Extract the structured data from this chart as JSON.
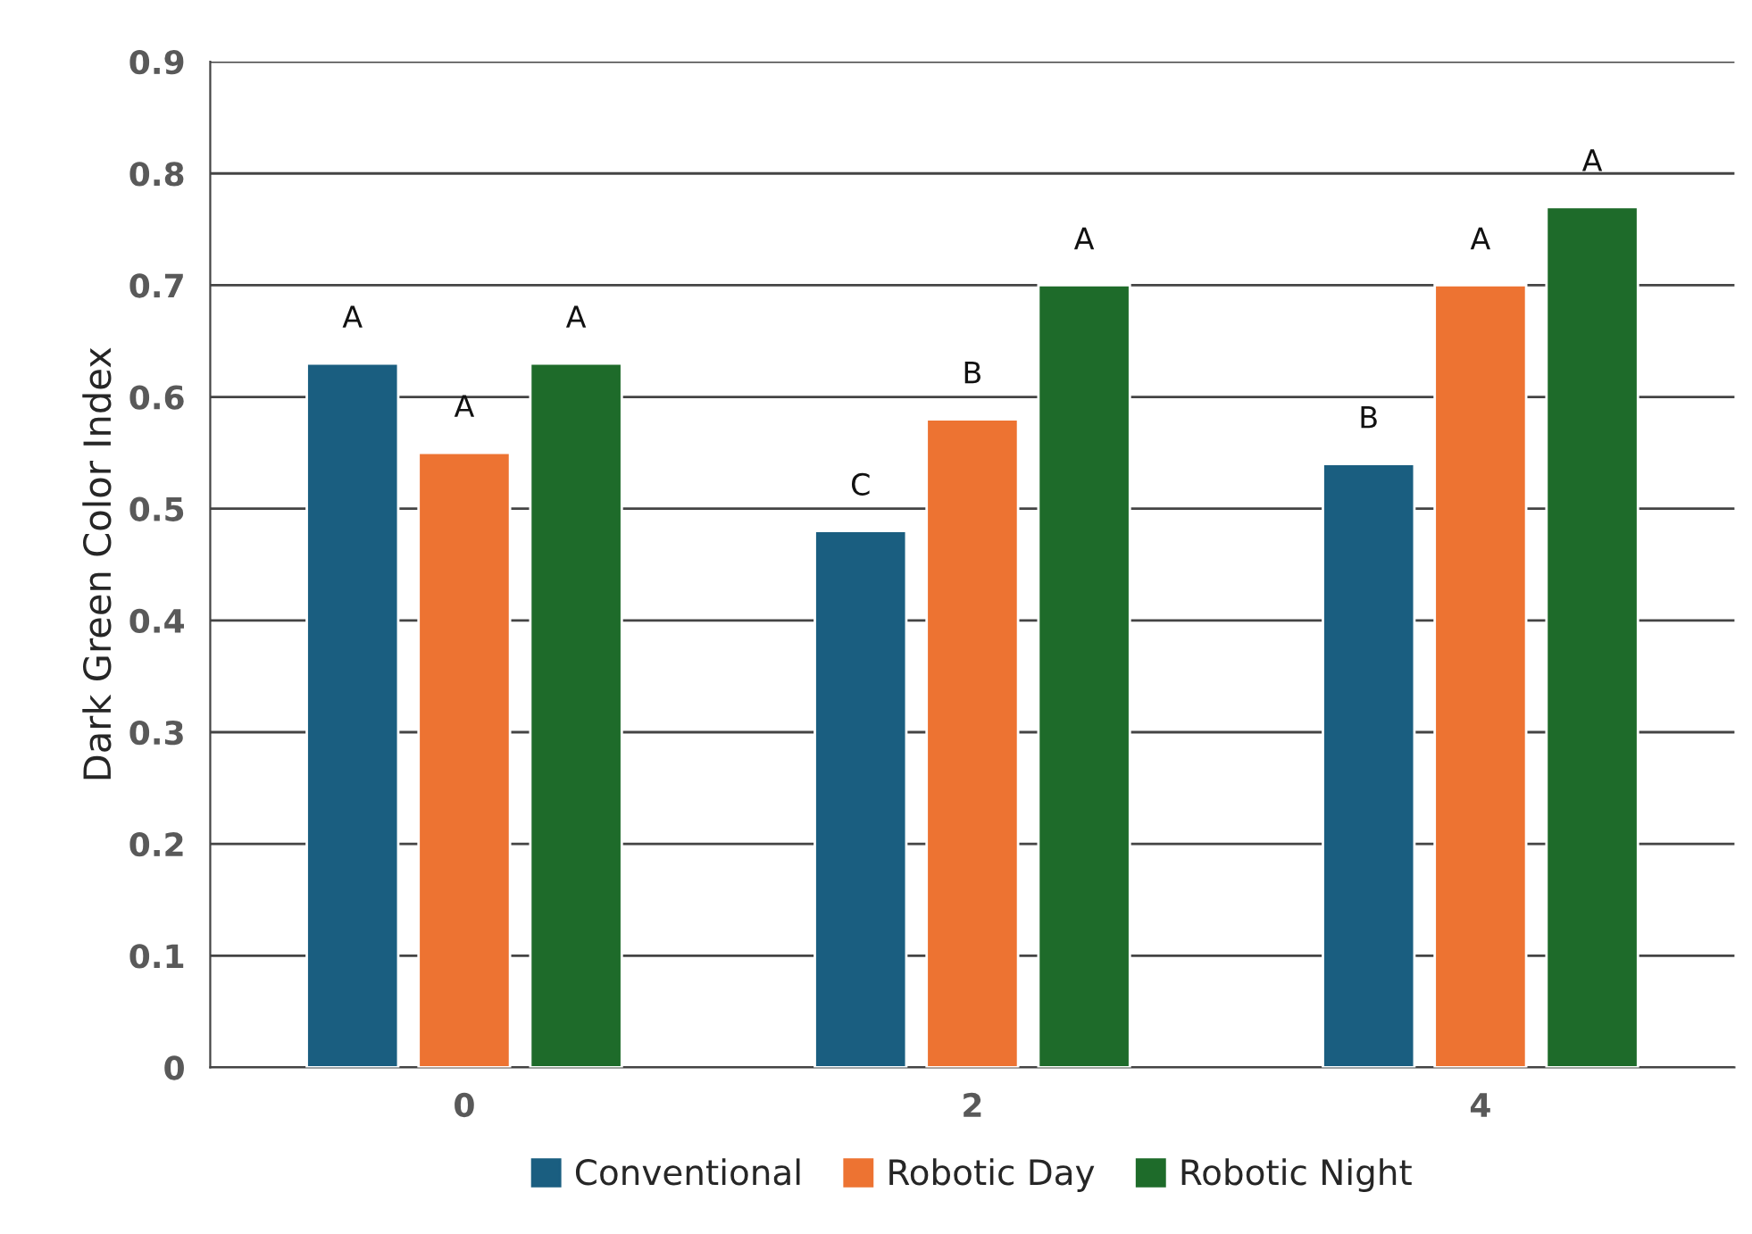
{
  "chart_data": {
    "type": "bar",
    "ylabel": "Dark Green Color Index",
    "categories": [
      "0",
      "2",
      "4"
    ],
    "series": [
      {
        "name": "Conventional",
        "color": "#1a5e80",
        "values": [
          0.63,
          0.48,
          0.54
        ],
        "value_labels": [
          "A",
          "C",
          "B"
        ]
      },
      {
        "name": "Robotic Day",
        "color": "#ed7332",
        "values": [
          0.55,
          0.58,
          0.7
        ],
        "value_labels": [
          "A",
          "B",
          "A"
        ]
      },
      {
        "name": "Robotic Night",
        "color": "#1e6b2a",
        "values": [
          0.63,
          0.7,
          0.77
        ],
        "value_labels": [
          "A",
          "A",
          "A"
        ]
      }
    ],
    "ylim": [
      0,
      0.9
    ],
    "yticks": [
      {
        "value": 0,
        "label": "0"
      },
      0.1,
      0.2,
      0.3,
      0.4,
      0.5,
      0.6,
      0.7,
      0.8,
      0.9
    ],
    "grid": "y",
    "legend": "bottom"
  }
}
